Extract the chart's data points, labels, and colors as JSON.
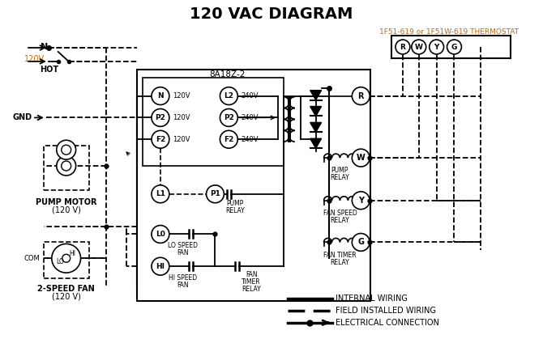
{
  "title": "120 VAC DIAGRAM",
  "title_fontsize": 14,
  "bg_color": "#ffffff",
  "line_color": "#000000",
  "thermostat_label": "1F51-619 or 1F51W-619 THERMOSTAT",
  "orange_color": "#cc6600",
  "controller_label": "8A18Z-2",
  "fig_w": 6.7,
  "fig_h": 4.19,
  "dpi": 100
}
